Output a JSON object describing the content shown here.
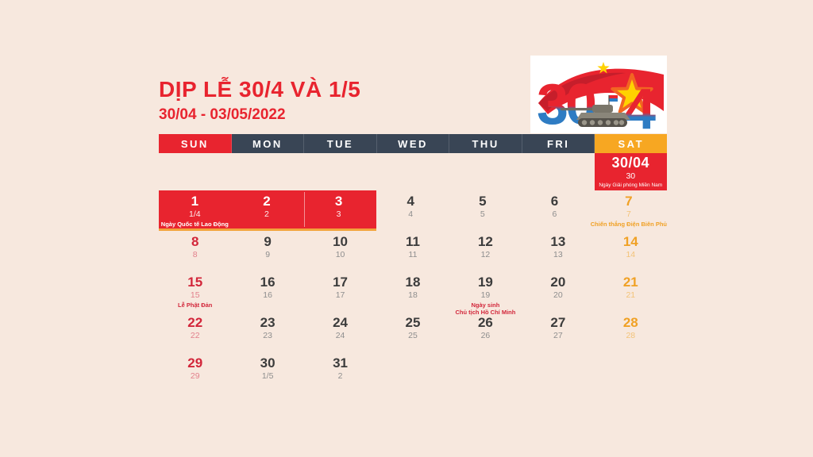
{
  "palette": {
    "background": "#F7E8DE",
    "red": "#E8242F",
    "navy": "#394555",
    "orange": "#F7A722",
    "dark_text": "#3C3C3C"
  },
  "header": {
    "title": "DỊP LỄ 30/4 VÀ 1/5",
    "subtitle": "30/04 - 03/05/2022"
  },
  "logo": {
    "num_30": "30",
    "num_4": "4"
  },
  "calendar": {
    "weekdays": [
      {
        "label": "SUN",
        "bg": "#E8242F"
      },
      {
        "label": "MON",
        "bg": "#394555"
      },
      {
        "label": "TUE",
        "bg": "#394555"
      },
      {
        "label": "WED",
        "bg": "#394555"
      },
      {
        "label": "THU",
        "bg": "#394555"
      },
      {
        "label": "FRI",
        "bg": "#394555"
      },
      {
        "label": "SAT",
        "bg": "#F7A722"
      }
    ],
    "sat_highlight": {
      "date": "30/04",
      "sub": "30",
      "label": "Ngày Giải phóng Miền Nam"
    },
    "weeks": [
      [
        {
          "num": "1",
          "sub": "1/4",
          "label": "Ngày Quốc tế Lao Động",
          "cls": "band"
        },
        {
          "num": "2",
          "sub": "2",
          "label": "",
          "cls": "band"
        },
        {
          "num": "3",
          "sub": "3",
          "label": "",
          "cls": "band"
        },
        {
          "num": "4",
          "sub": "4",
          "label": "",
          "cls": "normal"
        },
        {
          "num": "5",
          "sub": "5",
          "label": "",
          "cls": "normal"
        },
        {
          "num": "6",
          "sub": "6",
          "label": "",
          "cls": "normal"
        },
        {
          "num": "7",
          "sub": "7",
          "label": "Chiến thắng Điện Biên Phủ",
          "cls": "sat"
        }
      ],
      [
        {
          "num": "8",
          "sub": "8",
          "label": "",
          "cls": "sun"
        },
        {
          "num": "9",
          "sub": "9",
          "label": "",
          "cls": "normal"
        },
        {
          "num": "10",
          "sub": "10",
          "label": "",
          "cls": "normal"
        },
        {
          "num": "11",
          "sub": "11",
          "label": "",
          "cls": "normal"
        },
        {
          "num": "12",
          "sub": "12",
          "label": "",
          "cls": "normal"
        },
        {
          "num": "13",
          "sub": "13",
          "label": "",
          "cls": "normal"
        },
        {
          "num": "14",
          "sub": "14",
          "label": "",
          "cls": "sat"
        }
      ],
      [
        {
          "num": "15",
          "sub": "15",
          "label": "Lễ Phật Đản",
          "cls": "sun"
        },
        {
          "num": "16",
          "sub": "16",
          "label": "",
          "cls": "normal"
        },
        {
          "num": "17",
          "sub": "17",
          "label": "",
          "cls": "normal"
        },
        {
          "num": "18",
          "sub": "18",
          "label": "",
          "cls": "normal"
        },
        {
          "num": "19",
          "sub": "19",
          "label": "Ngày sinh\nChủ tịch Hồ Chí Minh",
          "cls": "normal"
        },
        {
          "num": "20",
          "sub": "20",
          "label": "",
          "cls": "normal"
        },
        {
          "num": "21",
          "sub": "21",
          "label": "",
          "cls": "sat"
        }
      ],
      [
        {
          "num": "22",
          "sub": "22",
          "label": "",
          "cls": "sun"
        },
        {
          "num": "23",
          "sub": "23",
          "label": "",
          "cls": "normal"
        },
        {
          "num": "24",
          "sub": "24",
          "label": "",
          "cls": "normal"
        },
        {
          "num": "25",
          "sub": "25",
          "label": "",
          "cls": "normal"
        },
        {
          "num": "26",
          "sub": "26",
          "label": "",
          "cls": "normal"
        },
        {
          "num": "27",
          "sub": "27",
          "label": "",
          "cls": "normal"
        },
        {
          "num": "28",
          "sub": "28",
          "label": "",
          "cls": "sat"
        }
      ],
      [
        {
          "num": "29",
          "sub": "29",
          "label": "",
          "cls": "sun"
        },
        {
          "num": "30",
          "sub": "1/5",
          "label": "",
          "cls": "normal"
        },
        {
          "num": "31",
          "sub": "2",
          "label": "",
          "cls": "normal"
        },
        {
          "num": "",
          "sub": "",
          "label": "",
          "cls": "empty"
        },
        {
          "num": "",
          "sub": "",
          "label": "",
          "cls": "empty"
        },
        {
          "num": "",
          "sub": "",
          "label": "",
          "cls": "empty"
        },
        {
          "num": "",
          "sub": "",
          "label": "",
          "cls": "empty"
        }
      ]
    ]
  }
}
